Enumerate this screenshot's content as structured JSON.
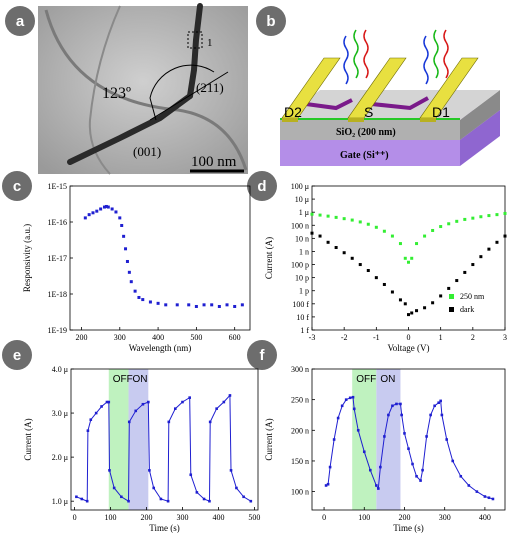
{
  "panels": {
    "a": {
      "label": "a",
      "angle": "123º",
      "plane_top": "(211)",
      "plane_bottom": "(001)",
      "marker": "1",
      "scale_bar": "100 nm"
    },
    "b": {
      "label": "b",
      "d2": "D2",
      "s": "S",
      "d1": "D1",
      "oxide": "SiO₂ (200 nm)",
      "gate": "Gate (Si⁺⁺)"
    },
    "c": {
      "label": "c"
    },
    "d": {
      "label": "d"
    },
    "e": {
      "label": "e",
      "off": "OFF",
      "on": "ON"
    },
    "f": {
      "label": "f",
      "off": "OFF",
      "on": "ON"
    }
  },
  "chart_data": [
    {
      "id": "c",
      "type": "scatter",
      "xlabel": "Wavelength (nm)",
      "ylabel": "Responsivity (a.u.)",
      "yscale": "log",
      "xlim": [
        170,
        640
      ],
      "ylim": [
        1e-19,
        1e-15
      ],
      "xticks": [
        200,
        300,
        400,
        500,
        600
      ],
      "yticks": [
        1e-19,
        1e-18,
        1e-17,
        1e-16,
        1e-15
      ],
      "ytick_labels": [
        "1E-19",
        "1E-18",
        "1E-17",
        "1E-16",
        "1E-15"
      ],
      "color": "#1f1fd1",
      "series": [
        {
          "points": [
            [
              210,
              1.3e-16
            ],
            [
              220,
              1.6e-16
            ],
            [
              230,
              1.8e-16
            ],
            [
              240,
              2e-16
            ],
            [
              250,
              2.3e-16
            ],
            [
              260,
              2.6e-16
            ],
            [
              265,
              2.7e-16
            ],
            [
              270,
              2.6e-16
            ],
            [
              280,
              2.3e-16
            ],
            [
              290,
              1.9e-16
            ],
            [
              300,
              1.3e-16
            ],
            [
              305,
              8e-17
            ],
            [
              310,
              4e-17
            ],
            [
              315,
              1.8e-17
            ],
            [
              320,
              8e-18
            ],
            [
              325,
              4e-18
            ],
            [
              330,
              2.2e-18
            ],
            [
              340,
              1.2e-18
            ],
            [
              350,
              8e-19
            ],
            [
              360,
              7e-19
            ],
            [
              380,
              6e-19
            ],
            [
              400,
              5.5e-19
            ],
            [
              420,
              5e-19
            ],
            [
              450,
              5e-19
            ],
            [
              480,
              5e-19
            ],
            [
              500,
              4.5e-19
            ],
            [
              520,
              5e-19
            ],
            [
              540,
              5e-19
            ],
            [
              560,
              4.5e-19
            ],
            [
              580,
              5e-19
            ],
            [
              600,
              4.5e-19
            ],
            [
              620,
              5e-19
            ]
          ]
        }
      ]
    },
    {
      "id": "d",
      "type": "scatter",
      "xlabel": "Voltage (V)",
      "ylabel": "Current (A)",
      "yscale": "log",
      "xlim": [
        -3,
        3
      ],
      "ylim": [
        1e-15,
        0.0001
      ],
      "xticks": [
        -3,
        -2,
        -1,
        0,
        1,
        2,
        3
      ],
      "yticks": [
        1e-15,
        1e-14,
        1e-13,
        1e-12,
        1e-11,
        1e-10,
        1e-09,
        1e-08,
        1e-07,
        1e-06,
        1e-05,
        0.0001
      ],
      "ytick_labels": [
        "1 f",
        "10 f",
        "100 f",
        "1 p",
        "10 p",
        "100 p",
        "1 n",
        "10 n",
        "100 n",
        "1 μ",
        "10 μ",
        "100 μ"
      ],
      "legend_position": "bottom-right",
      "series": [
        {
          "name": "250 nm",
          "color": "#33ee33",
          "points": [
            [
              -3,
              7e-07
            ],
            [
              -2.75,
              6e-07
            ],
            [
              -2.5,
              5e-07
            ],
            [
              -2.25,
              4e-07
            ],
            [
              -2,
              3.2e-07
            ],
            [
              -1.75,
              2.5e-07
            ],
            [
              -1.5,
              1.8e-07
            ],
            [
              -1.25,
              1.2e-07
            ],
            [
              -1,
              7e-08
            ],
            [
              -0.75,
              3.5e-08
            ],
            [
              -0.5,
              1.5e-08
            ],
            [
              -0.25,
              4e-09
            ],
            [
              -0.1,
              3e-10
            ],
            [
              0,
              1.5e-10
            ],
            [
              0.1,
              3e-10
            ],
            [
              0.25,
              4e-09
            ],
            [
              0.5,
              1.5e-08
            ],
            [
              0.75,
              4e-08
            ],
            [
              1,
              8e-08
            ],
            [
              1.25,
              1.3e-07
            ],
            [
              1.5,
              2e-07
            ],
            [
              1.75,
              2.8e-07
            ],
            [
              2,
              3.5e-07
            ],
            [
              2.25,
              4.5e-07
            ],
            [
              2.5,
              5.5e-07
            ],
            [
              2.75,
              6.5e-07
            ],
            [
              3,
              8e-07
            ]
          ]
        },
        {
          "name": "dark",
          "color": "#000000",
          "points": [
            [
              -3,
              2.5e-08
            ],
            [
              -2.75,
              1.5e-08
            ],
            [
              -2.5,
              5e-09
            ],
            [
              -2.25,
              2e-09
            ],
            [
              -2,
              8e-10
            ],
            [
              -1.75,
              3e-10
            ],
            [
              -1.5,
              1e-10
            ],
            [
              -1.25,
              3.5e-11
            ],
            [
              -1,
              1e-11
            ],
            [
              -0.75,
              3e-12
            ],
            [
              -0.5,
              8e-13
            ],
            [
              -0.25,
              2e-13
            ],
            [
              -0.1,
              1e-13
            ],
            [
              0,
              1.5e-14
            ],
            [
              0.1,
              2e-14
            ],
            [
              0.25,
              3e-14
            ],
            [
              0.5,
              5e-14
            ],
            [
              0.75,
              1.2e-13
            ],
            [
              1,
              4e-13
            ],
            [
              1.25,
              1.5e-12
            ],
            [
              1.5,
              6e-12
            ],
            [
              1.75,
              2.5e-11
            ],
            [
              2,
              1e-10
            ],
            [
              2.25,
              4e-10
            ],
            [
              2.5,
              1.5e-09
            ],
            [
              2.75,
              5e-09
            ],
            [
              3,
              1.5e-08
            ]
          ]
        }
      ]
    },
    {
      "id": "e",
      "type": "line",
      "xlabel": "Time (s)",
      "ylabel": "Current (A)",
      "xlim": [
        -10,
        510
      ],
      "ylim": [
        0.8,
        4.0
      ],
      "xticks": [
        0,
        100,
        200,
        300,
        400,
        500
      ],
      "yticks": [
        1.0,
        2.0,
        3.0,
        4.0
      ],
      "ytick_labels": [
        "1.0 μ",
        "2.0 μ",
        "3.0 μ",
        "4.0 μ"
      ],
      "shaded": [
        {
          "label": "OFF",
          "from": 95,
          "to": 150,
          "color": "#bff2bf"
        },
        {
          "label": "ON",
          "from": 150,
          "to": 205,
          "color": "#c8cbf0"
        }
      ],
      "color": "#1f1fd1",
      "series": [
        {
          "points": [
            [
              5,
              1.1
            ],
            [
              20,
              1.05
            ],
            [
              35,
              1.0
            ],
            [
              37,
              2.6
            ],
            [
              45,
              2.85
            ],
            [
              60,
              3.0
            ],
            [
              75,
              3.15
            ],
            [
              90,
              3.25
            ],
            [
              95,
              3.25
            ],
            [
              97,
              1.7
            ],
            [
              110,
              1.3
            ],
            [
              130,
              1.1
            ],
            [
              150,
              1.0
            ],
            [
              152,
              2.8
            ],
            [
              170,
              3.05
            ],
            [
              190,
              3.2
            ],
            [
              205,
              3.25
            ],
            [
              208,
              1.7
            ],
            [
              220,
              1.3
            ],
            [
              240,
              1.05
            ],
            [
              260,
              1.0
            ],
            [
              262,
              2.8
            ],
            [
              280,
              3.1
            ],
            [
              300,
              3.25
            ],
            [
              320,
              3.35
            ],
            [
              323,
              1.6
            ],
            [
              340,
              1.2
            ],
            [
              360,
              1.05
            ],
            [
              375,
              1.0
            ],
            [
              377,
              2.8
            ],
            [
              395,
              3.1
            ],
            [
              415,
              3.25
            ],
            [
              432,
              3.4
            ],
            [
              435,
              1.7
            ],
            [
              450,
              1.3
            ],
            [
              470,
              1.1
            ],
            [
              490,
              1.0
            ]
          ]
        }
      ]
    },
    {
      "id": "f",
      "type": "line",
      "xlabel": "Time (s)",
      "ylabel": "Current (A)",
      "xlim": [
        -30,
        450
      ],
      "ylim": [
        70,
        300
      ],
      "xticks": [
        0,
        100,
        200,
        300,
        400
      ],
      "yticks": [
        100,
        150,
        200,
        250,
        300
      ],
      "ytick_labels": [
        "100 n",
        "150 n",
        "200 n",
        "250 n",
        "300 n"
      ],
      "shaded": [
        {
          "label": "OFF",
          "from": 70,
          "to": 130,
          "color": "#bff2bf"
        },
        {
          "label": "ON",
          "from": 130,
          "to": 190,
          "color": "#c8cbf0"
        }
      ],
      "color": "#1f1fd1",
      "series": [
        {
          "points": [
            [
              5,
              110
            ],
            [
              10,
              112
            ],
            [
              15,
              140
            ],
            [
              25,
              185
            ],
            [
              35,
              220
            ],
            [
              45,
              240
            ],
            [
              55,
              250
            ],
            [
              65,
              253
            ],
            [
              72,
              254
            ],
            [
              75,
              235
            ],
            [
              85,
              200
            ],
            [
              100,
              165
            ],
            [
              115,
              135
            ],
            [
              130,
              110
            ],
            [
              135,
              105
            ],
            [
              140,
              140
            ],
            [
              150,
              190
            ],
            [
              160,
              225
            ],
            [
              170,
              240
            ],
            [
              180,
              243
            ],
            [
              190,
              243
            ],
            [
              193,
              225
            ],
            [
              200,
              195
            ],
            [
              210,
              170
            ],
            [
              220,
              145
            ],
            [
              230,
              125
            ],
            [
              240,
              118
            ],
            [
              245,
              135
            ],
            [
              255,
              190
            ],
            [
              265,
              225
            ],
            [
              275,
              240
            ],
            [
              285,
              245
            ],
            [
              290,
              248
            ],
            [
              293,
              225
            ],
            [
              305,
              185
            ],
            [
              320,
              150
            ],
            [
              340,
              125
            ],
            [
              360,
              110
            ],
            [
              380,
              100
            ],
            [
              400,
              92
            ],
            [
              410,
              90
            ],
            [
              420,
              88
            ]
          ]
        }
      ]
    }
  ]
}
